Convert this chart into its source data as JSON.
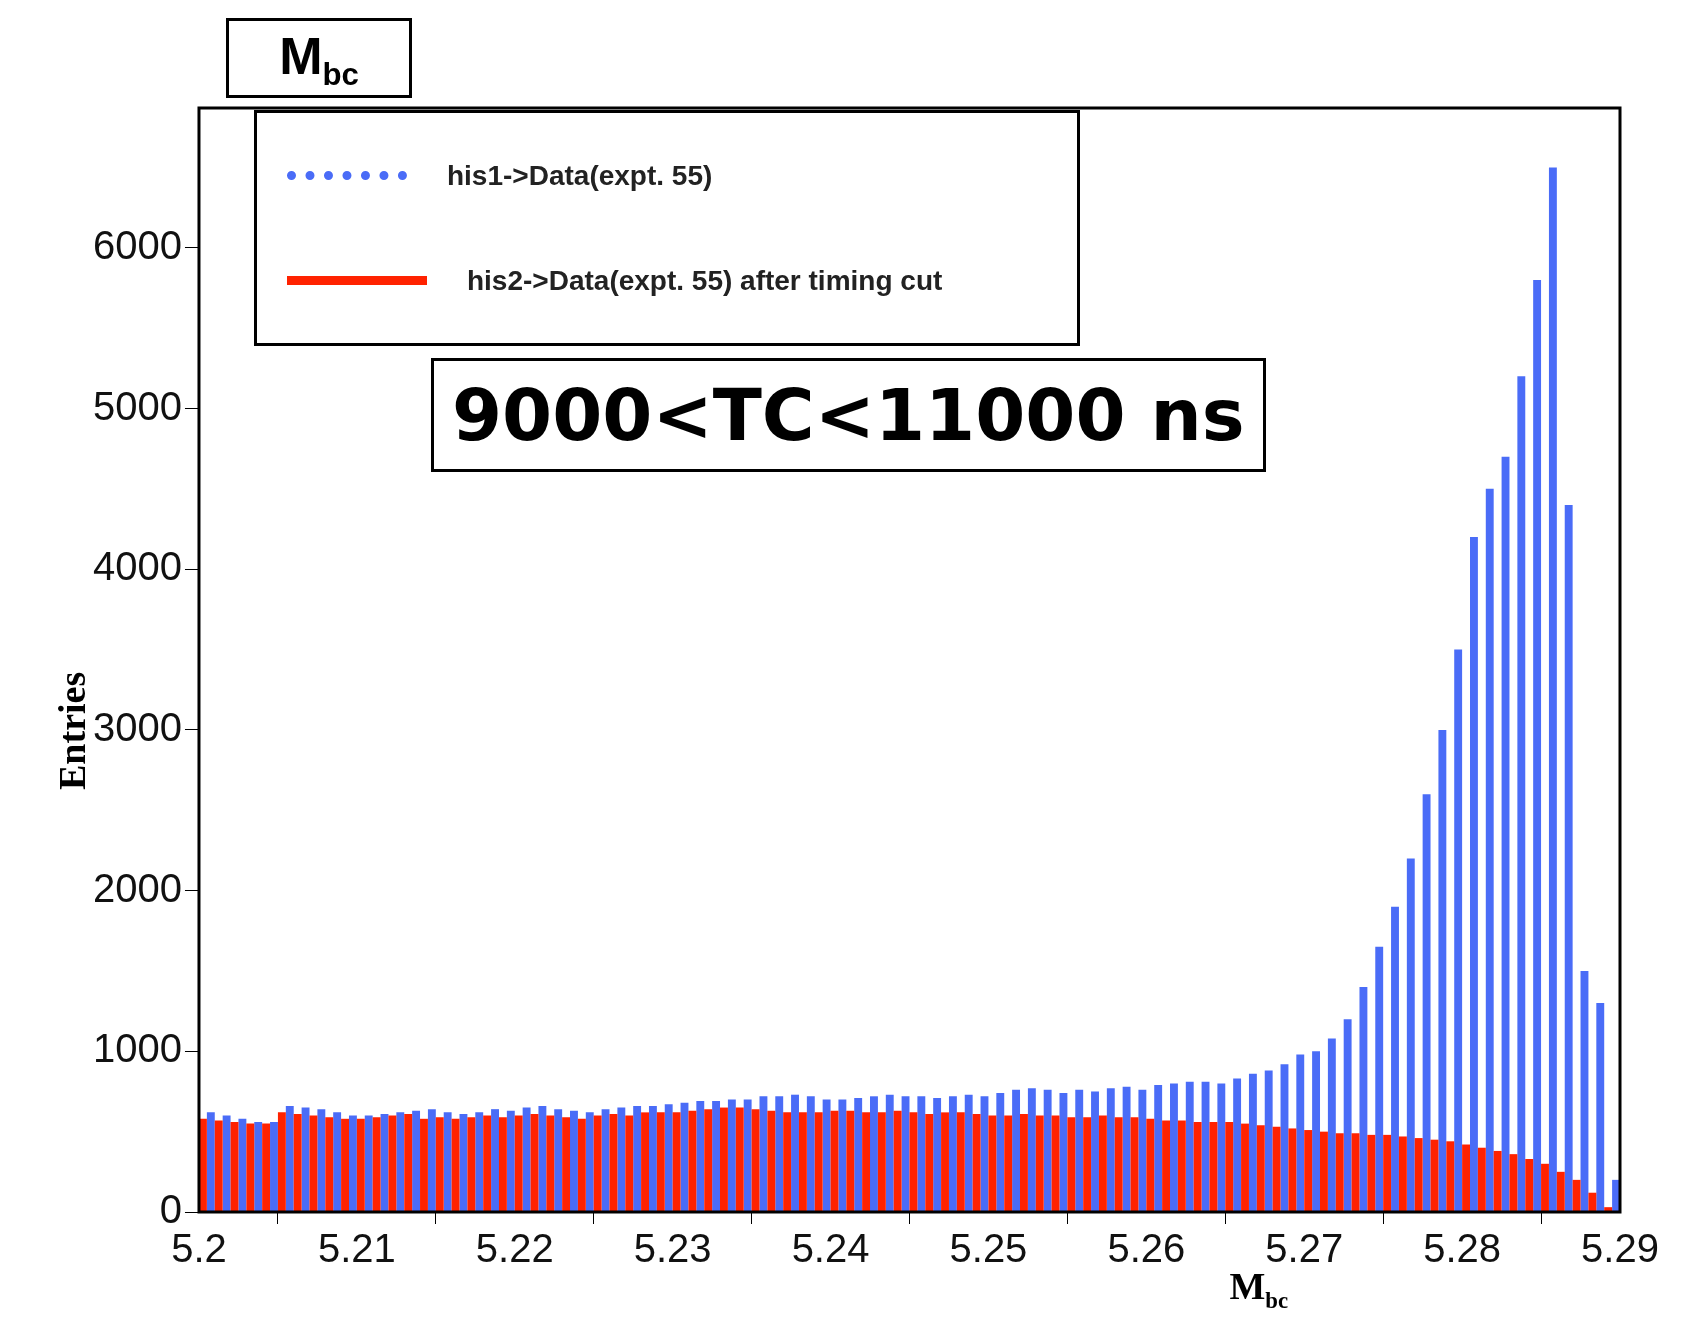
{
  "chart_data": {
    "type": "histogram",
    "title": "M$_{bc}$",
    "xlabel": "M$_{bc}$",
    "ylabel": "Entries",
    "annotations": [
      "9000<TC<11000 ns"
    ],
    "bins": [
      5.2,
      5.201,
      5.202,
      5.203,
      5.204,
      5.205,
      5.206,
      5.207,
      5.208,
      5.209,
      5.21,
      5.211,
      5.212,
      5.213,
      5.214,
      5.215,
      5.216,
      5.217,
      5.218,
      5.219,
      5.22,
      5.221,
      5.222,
      5.223,
      5.224,
      5.225,
      5.226,
      5.227,
      5.228,
      5.229,
      5.23,
      5.231,
      5.232,
      5.233,
      5.234,
      5.235,
      5.236,
      5.237,
      5.238,
      5.239,
      5.24,
      5.241,
      5.242,
      5.243,
      5.244,
      5.245,
      5.246,
      5.247,
      5.248,
      5.249,
      5.25,
      5.251,
      5.252,
      5.253,
      5.254,
      5.255,
      5.256,
      5.257,
      5.258,
      5.259,
      5.26,
      5.261,
      5.262,
      5.263,
      5.264,
      5.265,
      5.266,
      5.267,
      5.268,
      5.269,
      5.27,
      5.271,
      5.272,
      5.273,
      5.274,
      5.275,
      5.276,
      5.277,
      5.278,
      5.279,
      5.28,
      5.281,
      5.282,
      5.283,
      5.284,
      5.285,
      5.286,
      5.287,
      5.288,
      5.289,
      5.29
    ],
    "series": [
      {
        "name": "his1->Data(expt. 55)",
        "color": "#4a6cf7",
        "line_style": "dotted",
        "values": [
          620,
          600,
          580,
          560,
          560,
          660,
          650,
          640,
          620,
          600,
          600,
          610,
          620,
          630,
          640,
          620,
          610,
          620,
          640,
          630,
          650,
          660,
          640,
          630,
          620,
          640,
          650,
          660,
          660,
          670,
          680,
          690,
          690,
          700,
          700,
          720,
          720,
          730,
          720,
          700,
          700,
          710,
          720,
          730,
          720,
          720,
          710,
          720,
          730,
          720,
          740,
          760,
          770,
          760,
          740,
          760,
          750,
          770,
          780,
          760,
          790,
          800,
          810,
          810,
          800,
          830,
          860,
          880,
          920,
          980,
          1000,
          1080,
          1200,
          1400,
          1650,
          1900,
          2200,
          2600,
          3000,
          3500,
          4200,
          4500,
          4700,
          5200,
          5800,
          6500,
          4400,
          1500,
          1300,
          200
        ]
      },
      {
        "name": "his2->Data(expt. 55) after timing cut",
        "color": "#ff2200",
        "line_style": "solid",
        "values": [
          580,
          570,
          560,
          550,
          550,
          620,
          610,
          600,
          590,
          580,
          580,
          590,
          600,
          610,
          580,
          590,
          580,
          590,
          600,
          590,
          600,
          610,
          600,
          590,
          580,
          600,
          610,
          600,
          620,
          620,
          620,
          630,
          640,
          650,
          650,
          640,
          630,
          620,
          620,
          620,
          630,
          630,
          620,
          620,
          630,
          620,
          610,
          620,
          620,
          610,
          600,
          600,
          610,
          600,
          600,
          590,
          590,
          600,
          590,
          590,
          580,
          570,
          570,
          560,
          560,
          560,
          550,
          540,
          530,
          520,
          510,
          500,
          490,
          490,
          480,
          480,
          470,
          460,
          450,
          440,
          420,
          400,
          380,
          360,
          330,
          300,
          250,
          200,
          120,
          30
        ]
      }
    ],
    "xlim": [
      5.2,
      5.29
    ],
    "xticks": [
      5.2,
      5.21,
      5.22,
      5.23,
      5.24,
      5.25,
      5.26,
      5.27,
      5.28,
      5.29
    ],
    "ylim": [
      0,
      6870
    ],
    "yticks": [
      0,
      1000,
      2000,
      3000,
      4000,
      5000,
      6000
    ],
    "legend": "top left"
  }
}
